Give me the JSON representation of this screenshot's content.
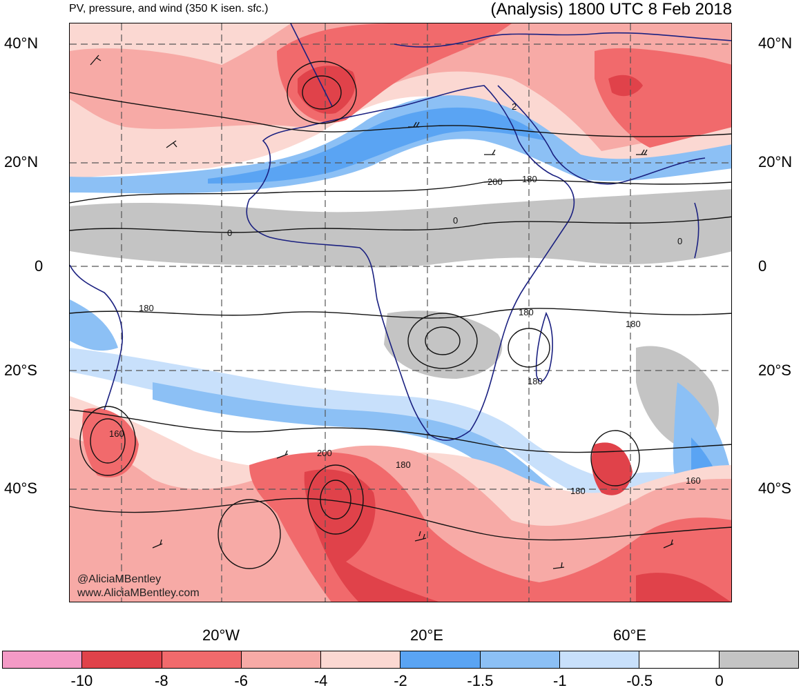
{
  "header": {
    "title_left": "PV, pressure, and wind (350 K isen. sfc.)",
    "title_right": "(Analysis) 1800 UTC 8 Feb 2018"
  },
  "axes": {
    "lat_labels": [
      "40°N",
      "20°N",
      "0",
      "20°S",
      "40°S"
    ],
    "lon_labels": [
      "20°W",
      "20°E",
      "60°E"
    ]
  },
  "contour_labels": [
    "2",
    "200",
    "180",
    "0",
    "0",
    "0",
    "180",
    "180",
    "180",
    "180",
    "160",
    "200",
    "180",
    "180",
    "160"
  ],
  "credit": {
    "line1": "@AliciaMBentley",
    "line2": "www.AliciaMBentley.com"
  },
  "colorbar": {
    "colors": [
      "#f49ac6",
      "#e0424a",
      "#f16a6c",
      "#f7aaa6",
      "#fbd8d2",
      "#5aa4f3",
      "#8cc0f5",
      "#c8e0fb",
      "#ffffff",
      "#c4c4c4"
    ],
    "labels": [
      "-10",
      "-8",
      "-6",
      "-4",
      "-2",
      "-1.5",
      "-1",
      "-0.5",
      "0"
    ]
  }
}
